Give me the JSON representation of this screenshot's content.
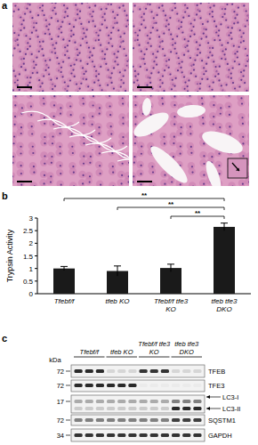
{
  "panel_labels": [
    "a",
    "b",
    "c"
  ],
  "chart_data": {
    "type": "bar",
    "y_label": "Trypsin Activity",
    "categories": [
      "Tfebf/f",
      "tfeb KO",
      "Tfebf/f tfe3 KO",
      "tfeb tfe3 DKO"
    ],
    "values": [
      1.0,
      0.9,
      1.02,
      2.65
    ],
    "errors": [
      0.08,
      0.2,
      0.15,
      0.15
    ],
    "color": "#1a1a1a",
    "ylim": [
      0,
      3
    ],
    "yticks": [
      0,
      0.5,
      1,
      1.5,
      2,
      2.5,
      3
    ],
    "significance": [
      {
        "from": 0,
        "to": 3,
        "label": "**"
      },
      {
        "from": 1,
        "to": 3,
        "label": "**"
      },
      {
        "from": 2,
        "to": 3,
        "label": "**"
      }
    ]
  },
  "blot": {
    "unit": "kDa",
    "groups": [
      {
        "label": "Tfebf/f",
        "lanes": 3
      },
      {
        "label": "tfeb KO",
        "lanes": 3
      },
      {
        "label": "Tfebf/f tfe3 KO",
        "lanes": 3
      },
      {
        "label": "tfeb tfe3 DKO",
        "lanes": 3
      }
    ],
    "rows": [
      {
        "name": "TFEB",
        "marker": 72,
        "intensity": [
          0.9,
          0.9,
          0.9,
          0.1,
          0.1,
          0.1,
          0.85,
          0.85,
          0.85,
          0.1,
          0.1,
          0.1
        ]
      },
      {
        "name": "TFE3",
        "marker": 72,
        "intensity": [
          0.9,
          0.9,
          0.9,
          0.9,
          0.9,
          0.9,
          0,
          0,
          0,
          0,
          0,
          0
        ]
      },
      {
        "name": "LC3-I",
        "marker": 17,
        "intensity": [
          0.3,
          0.3,
          0.3,
          0.3,
          0.3,
          0.3,
          0.3,
          0.3,
          0.3,
          0.5,
          0.5,
          0.5
        ]
      },
      {
        "name": "LC3-II",
        "marker": null,
        "intensity": [
          0.15,
          0.15,
          0.15,
          0.15,
          0.15,
          0.15,
          0.15,
          0.15,
          0.15,
          0.9,
          0.9,
          0.9
        ]
      },
      {
        "name": "SQSTM1",
        "marker": 72,
        "intensity": [
          0.5,
          0.5,
          0.5,
          0.5,
          0.5,
          0.5,
          0.5,
          0.5,
          0.5,
          0.8,
          0.8,
          0.8
        ]
      },
      {
        "name": "GAPDH",
        "marker": 34,
        "intensity": [
          0.85,
          0.85,
          0.85,
          0.85,
          0.85,
          0.85,
          0.85,
          0.85,
          0.85,
          0.85,
          0.85,
          0.85
        ]
      }
    ]
  }
}
